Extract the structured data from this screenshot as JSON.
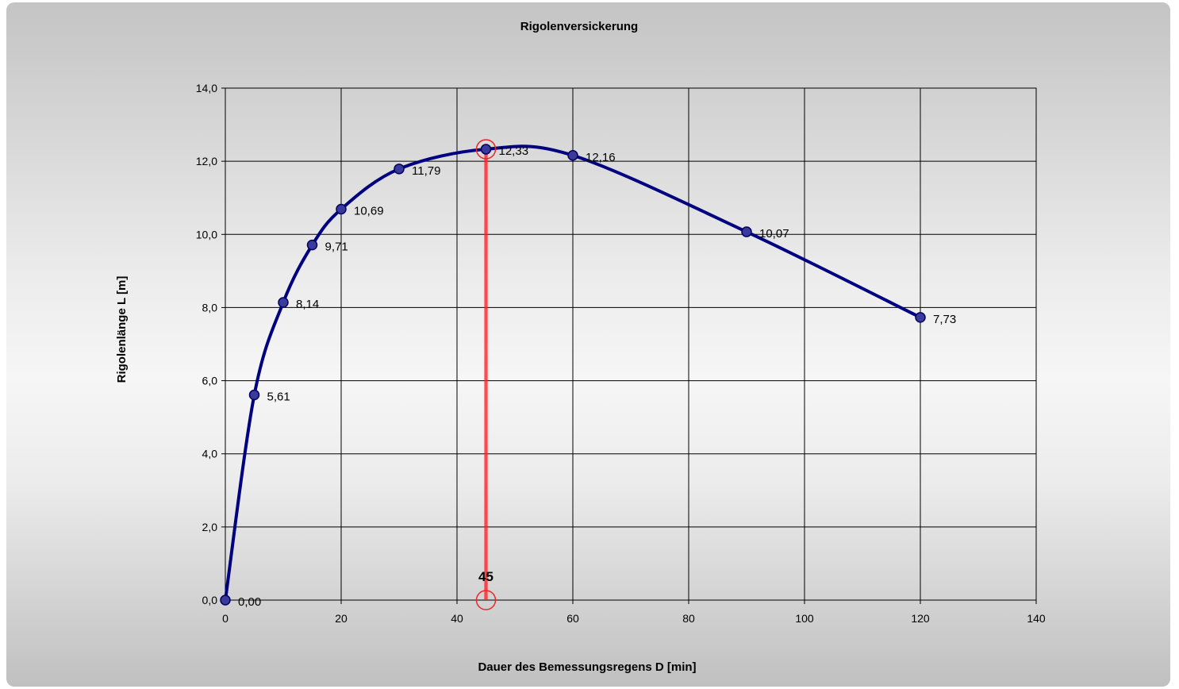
{
  "chart_data": {
    "type": "line",
    "title": "Rigolenversickerung",
    "xlabel": "Dauer des Bemessungsregens  D [min]",
    "ylabel": "Rigolenlänge L [m]",
    "xlim": [
      0,
      140
    ],
    "ylim": [
      0,
      14
    ],
    "x_ticks": [
      "0",
      "20",
      "40",
      "60",
      "80",
      "100",
      "120",
      "140"
    ],
    "y_ticks": [
      "0,0",
      "2,0",
      "4,0",
      "6,0",
      "8,0",
      "10,0",
      "12,0",
      "14,0"
    ],
    "grid": true,
    "series": [
      {
        "x": [
          0,
          5,
          10,
          15,
          20,
          30,
          45,
          60,
          90,
          120
        ],
        "y": [
          0.0,
          5.61,
          8.14,
          9.71,
          10.69,
          11.79,
          12.33,
          12.16,
          10.07,
          7.73
        ],
        "labels": [
          "0,00",
          "5,61",
          "8,14",
          "9,71",
          "10,69",
          "11,79",
          "12,33",
          "12,16",
          "10,07",
          "7,73"
        ],
        "color": "#000080"
      }
    ],
    "marker": {
      "x": 45,
      "y": 12.33,
      "label": "45",
      "color": "#e8282a"
    }
  }
}
